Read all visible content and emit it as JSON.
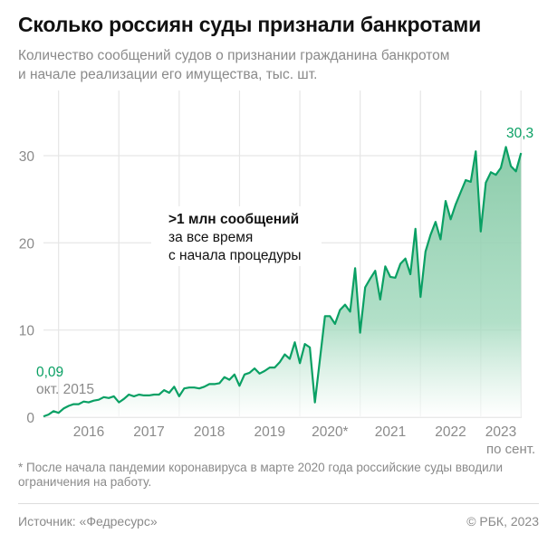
{
  "header": {
    "title": "Сколько россиян суды признали банкротами",
    "subtitle_line1": "Количество сообщений судов о признании гражданина банкротом",
    "subtitle_line2": "и начале реализации его имущества, тыс. шт."
  },
  "footnote_line1": "* После начала пандемии коронавируса в марте 2020 года российские суды вводили",
  "footnote_line2": "ограничения на работу.",
  "source": "Источник: «Федресурс»",
  "copyright": "© РБК, 2023",
  "colors": {
    "line": "#0aa064",
    "fill_top": "#86c9a6",
    "grid": "#e6e6e6",
    "label_green": "#0aa064"
  },
  "chart_data": {
    "type": "area",
    "ylim": [
      0,
      30
    ],
    "yticks": [
      0,
      10,
      20,
      30
    ],
    "ytick_labels": [
      "0",
      "10",
      "20",
      "30"
    ],
    "xtick_labels": [
      "2016",
      "2017",
      "2018",
      "2019",
      "2020*",
      "2021",
      "2022",
      "2023"
    ],
    "xtick_sublabel": "по сент.",
    "grid": true,
    "annotation": {
      "bold": ">1 млн сообщений",
      "line2": "за все время",
      "line3": "с начала процедуры"
    },
    "start_label": {
      "value": "0,09",
      "date": "окт. 2015"
    },
    "end_label": {
      "value": "30,3"
    },
    "x": [
      "2015-10",
      "2015-11",
      "2015-12",
      "2016-01",
      "2016-02",
      "2016-03",
      "2016-04",
      "2016-05",
      "2016-06",
      "2016-07",
      "2016-08",
      "2016-09",
      "2016-10",
      "2016-11",
      "2016-12",
      "2017-01",
      "2017-02",
      "2017-03",
      "2017-04",
      "2017-05",
      "2017-06",
      "2017-07",
      "2017-08",
      "2017-09",
      "2017-10",
      "2017-11",
      "2017-12",
      "2018-01",
      "2018-02",
      "2018-03",
      "2018-04",
      "2018-05",
      "2018-06",
      "2018-07",
      "2018-08",
      "2018-09",
      "2018-10",
      "2018-11",
      "2018-12",
      "2019-01",
      "2019-02",
      "2019-03",
      "2019-04",
      "2019-05",
      "2019-06",
      "2019-07",
      "2019-08",
      "2019-09",
      "2019-10",
      "2019-11",
      "2019-12",
      "2020-01",
      "2020-02",
      "2020-03",
      "2020-04",
      "2020-05",
      "2020-06",
      "2020-07",
      "2020-08",
      "2020-09",
      "2020-10",
      "2020-11",
      "2020-12",
      "2021-01",
      "2021-02",
      "2021-03",
      "2021-04",
      "2021-05",
      "2021-06",
      "2021-07",
      "2021-08",
      "2021-09",
      "2021-10",
      "2021-11",
      "2021-12",
      "2022-01",
      "2022-02",
      "2022-03",
      "2022-04",
      "2022-05",
      "2022-06",
      "2022-07",
      "2022-08",
      "2022-09",
      "2022-10",
      "2022-11",
      "2022-12",
      "2023-01",
      "2023-02",
      "2023-03",
      "2023-04",
      "2023-05",
      "2023-06",
      "2023-07",
      "2023-08",
      "2023-09"
    ],
    "values": [
      0.09,
      0.3,
      0.7,
      0.5,
      1.0,
      1.3,
      1.5,
      1.5,
      1.8,
      1.7,
      1.9,
      2.0,
      2.3,
      2.2,
      2.4,
      1.7,
      2.1,
      2.6,
      2.4,
      2.6,
      2.5,
      2.5,
      2.6,
      2.6,
      3.1,
      2.8,
      3.5,
      2.4,
      3.3,
      3.4,
      3.4,
      3.3,
      3.5,
      3.8,
      3.8,
      3.9,
      4.6,
      4.3,
      4.9,
      3.6,
      4.9,
      5.1,
      5.6,
      5.0,
      5.3,
      5.7,
      5.7,
      6.3,
      7.2,
      6.7,
      8.6,
      6.2,
      8.4,
      8.0,
      1.7,
      6.7,
      11.6,
      11.6,
      10.7,
      12.3,
      12.9,
      12.1,
      17.1,
      9.7,
      14.9,
      15.9,
      16.8,
      13.5,
      17.3,
      16.1,
      16.0,
      17.6,
      18.2,
      16.4,
      21.6,
      13.8,
      19.0,
      20.9,
      22.4,
      20.4,
      24.8,
      22.7,
      24.4,
      25.8,
      27.2,
      27.0,
      30.5,
      21.3,
      26.9,
      28.1,
      27.8,
      28.6,
      31.0,
      28.8,
      28.2,
      30.3
    ]
  }
}
